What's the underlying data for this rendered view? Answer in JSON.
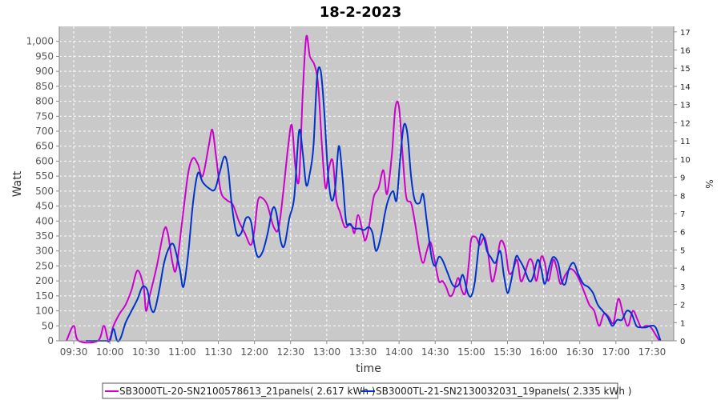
{
  "chart_data": {
    "type": "line",
    "title": "18-2-2023",
    "xlabel": "time",
    "ylabel": "Watt",
    "y2label": "%",
    "ylim": [
      0,
      1050
    ],
    "y2lim": [
      0,
      17.3
    ],
    "xlim": [
      "09:18",
      "17:48"
    ],
    "grid": true,
    "legend_position": "bottom",
    "x_ticks": [
      "09:30",
      "10:00",
      "10:30",
      "11:00",
      "11:30",
      "12:00",
      "12:30",
      "13:00",
      "13:30",
      "14:00",
      "14:30",
      "15:00",
      "15:30",
      "16:00",
      "16:30",
      "17:00",
      "17:30"
    ],
    "y_ticks": [
      "0",
      "50",
      "100",
      "150",
      "200",
      "250",
      "300",
      "350",
      "400",
      "450",
      "500",
      "550",
      "600",
      "650",
      "700",
      "750",
      "800",
      "850",
      "900",
      "950",
      "1,000"
    ],
    "y2_ticks": [
      "0",
      "1",
      "2",
      "3",
      "4",
      "5",
      "6",
      "7",
      "8",
      "9",
      "10",
      "11",
      "12",
      "13",
      "14",
      "15",
      "16",
      "17"
    ],
    "series": [
      {
        "name": "SB3000TL-20-SN2100578613_21panels( 2.617 kWh )",
        "color": "#cc00cc",
        "points": [
          [
            "09:24",
            0
          ],
          [
            "09:30",
            50
          ],
          [
            "09:34",
            0
          ],
          [
            "09:50",
            0
          ],
          [
            "09:55",
            50
          ],
          [
            "09:59",
            0
          ],
          [
            "10:03",
            50
          ],
          [
            "10:08",
            90
          ],
          [
            "10:13",
            120
          ],
          [
            "10:18",
            170
          ],
          [
            "10:23",
            235
          ],
          [
            "10:28",
            180
          ],
          [
            "10:30",
            100
          ],
          [
            "10:33",
            150
          ],
          [
            "10:39",
            250
          ],
          [
            "10:45",
            370
          ],
          [
            "10:48",
            360
          ],
          [
            "10:52",
            260
          ],
          [
            "10:55",
            240
          ],
          [
            "11:00",
            400
          ],
          [
            "11:05",
            560
          ],
          [
            "11:09",
            610
          ],
          [
            "11:13",
            590
          ],
          [
            "11:17",
            550
          ],
          [
            "11:22",
            650
          ],
          [
            "11:25",
            705
          ],
          [
            "11:28",
            620
          ],
          [
            "11:32",
            500
          ],
          [
            "11:37",
            470
          ],
          [
            "11:42",
            455
          ],
          [
            "11:47",
            400
          ],
          [
            "11:52",
            360
          ],
          [
            "11:57",
            320
          ],
          [
            "12:00",
            370
          ],
          [
            "12:03",
            470
          ],
          [
            "12:07",
            475
          ],
          [
            "12:11",
            450
          ],
          [
            "12:16",
            380
          ],
          [
            "12:20",
            375
          ],
          [
            "12:24",
            500
          ],
          [
            "12:28",
            650
          ],
          [
            "12:31",
            720
          ],
          [
            "12:34",
            580
          ],
          [
            "12:37",
            540
          ],
          [
            "12:40",
            820
          ],
          [
            "12:43",
            1015
          ],
          [
            "12:46",
            950
          ],
          [
            "12:50",
            920
          ],
          [
            "12:53",
            850
          ],
          [
            "12:56",
            650
          ],
          [
            "12:59",
            510
          ],
          [
            "13:02",
            580
          ],
          [
            "13:05",
            600
          ],
          [
            "13:08",
            470
          ],
          [
            "13:11",
            430
          ],
          [
            "13:15",
            380
          ],
          [
            "13:20",
            390
          ],
          [
            "13:23",
            360
          ],
          [
            "13:26",
            420
          ],
          [
            "13:30",
            360
          ],
          [
            "13:32",
            335
          ],
          [
            "13:35",
            380
          ],
          [
            "13:39",
            480
          ],
          [
            "13:43",
            510
          ],
          [
            "13:47",
            570
          ],
          [
            "13:50",
            490
          ],
          [
            "13:54",
            620
          ],
          [
            "13:57",
            780
          ],
          [
            "14:00",
            780
          ],
          [
            "14:03",
            620
          ],
          [
            "14:06",
            480
          ],
          [
            "14:10",
            460
          ],
          [
            "14:13",
            400
          ],
          [
            "14:17",
            300
          ],
          [
            "14:20",
            260
          ],
          [
            "14:23",
            300
          ],
          [
            "14:26",
            330
          ],
          [
            "14:29",
            280
          ],
          [
            "14:33",
            200
          ],
          [
            "14:36",
            200
          ],
          [
            "14:39",
            180
          ],
          [
            "14:42",
            150
          ],
          [
            "14:45",
            160
          ],
          [
            "14:49",
            210
          ],
          [
            "14:52",
            170
          ],
          [
            "14:55",
            160
          ],
          [
            "14:58",
            260
          ],
          [
            "15:00",
            340
          ],
          [
            "15:04",
            345
          ],
          [
            "15:07",
            320
          ],
          [
            "15:11",
            345
          ],
          [
            "15:14",
            290
          ],
          [
            "15:17",
            200
          ],
          [
            "15:20",
            230
          ],
          [
            "15:24",
            330
          ],
          [
            "15:28",
            310
          ],
          [
            "15:31",
            230
          ],
          [
            "15:34",
            230
          ],
          [
            "15:38",
            270
          ],
          [
            "15:41",
            200
          ],
          [
            "15:44",
            220
          ],
          [
            "15:48",
            270
          ],
          [
            "15:51",
            260
          ],
          [
            "15:54",
            200
          ],
          [
            "15:58",
            280
          ],
          [
            "16:01",
            260
          ],
          [
            "16:04",
            200
          ],
          [
            "16:08",
            270
          ],
          [
            "16:11",
            240
          ],
          [
            "16:14",
            190
          ],
          [
            "16:18",
            220
          ],
          [
            "16:22",
            240
          ],
          [
            "16:26",
            230
          ],
          [
            "16:30",
            200
          ],
          [
            "16:34",
            160
          ],
          [
            "16:38",
            120
          ],
          [
            "16:42",
            100
          ],
          [
            "16:46",
            50
          ],
          [
            "16:50",
            90
          ],
          [
            "16:54",
            80
          ],
          [
            "16:58",
            60
          ],
          [
            "17:02",
            140
          ],
          [
            "17:06",
            90
          ],
          [
            "17:10",
            50
          ],
          [
            "17:14",
            100
          ],
          [
            "17:18",
            70
          ],
          [
            "17:21",
            45
          ],
          [
            "17:25",
            50
          ],
          [
            "17:29",
            45
          ],
          [
            "17:33",
            20
          ],
          [
            "17:36",
            0
          ]
        ]
      },
      {
        "name": "SB3000TL-21-SN2130032031_19panels( 2.335 kWh )",
        "color": "#0033cc",
        "points": [
          [
            "09:40",
            0
          ],
          [
            "09:52",
            0
          ],
          [
            "09:57",
            0
          ],
          [
            "10:00",
            0
          ],
          [
            "10:03",
            40
          ],
          [
            "10:06",
            0
          ],
          [
            "10:09",
            10
          ],
          [
            "10:13",
            60
          ],
          [
            "10:18",
            100
          ],
          [
            "10:23",
            140
          ],
          [
            "10:27",
            180
          ],
          [
            "10:31",
            170
          ],
          [
            "10:34",
            110
          ],
          [
            "10:37",
            100
          ],
          [
            "10:41",
            170
          ],
          [
            "10:45",
            260
          ],
          [
            "10:49",
            310
          ],
          [
            "10:53",
            320
          ],
          [
            "10:58",
            240
          ],
          [
            "11:01",
            180
          ],
          [
            "11:05",
            290
          ],
          [
            "11:09",
            460
          ],
          [
            "11:13",
            560
          ],
          [
            "11:17",
            530
          ],
          [
            "11:22",
            510
          ],
          [
            "11:27",
            505
          ],
          [
            "11:31",
            560
          ],
          [
            "11:35",
            615
          ],
          [
            "11:38",
            580
          ],
          [
            "11:41",
            460
          ],
          [
            "11:45",
            360
          ],
          [
            "11:49",
            360
          ],
          [
            "11:53",
            410
          ],
          [
            "11:57",
            400
          ],
          [
            "12:00",
            320
          ],
          [
            "12:03",
            280
          ],
          [
            "12:07",
            300
          ],
          [
            "12:11",
            360
          ],
          [
            "12:15",
            440
          ],
          [
            "12:18",
            430
          ],
          [
            "12:22",
            330
          ],
          [
            "12:25",
            320
          ],
          [
            "12:29",
            410
          ],
          [
            "12:33",
            480
          ],
          [
            "12:37",
            700
          ],
          [
            "12:40",
            630
          ],
          [
            "12:43",
            520
          ],
          [
            "12:46",
            560
          ],
          [
            "12:49",
            650
          ],
          [
            "12:52",
            880
          ],
          [
            "12:55",
            900
          ],
          [
            "12:58",
            760
          ],
          [
            "13:01",
            560
          ],
          [
            "13:04",
            470
          ],
          [
            "13:07",
            510
          ],
          [
            "13:10",
            650
          ],
          [
            "13:13",
            550
          ],
          [
            "13:16",
            400
          ],
          [
            "13:19",
            390
          ],
          [
            "13:23",
            375
          ],
          [
            "13:27",
            375
          ],
          [
            "13:31",
            370
          ],
          [
            "13:35",
            380
          ],
          [
            "13:38",
            360
          ],
          [
            "13:41",
            300
          ],
          [
            "13:45",
            350
          ],
          [
            "13:48",
            420
          ],
          [
            "13:51",
            470
          ],
          [
            "13:55",
            500
          ],
          [
            "13:58",
            470
          ],
          [
            "14:01",
            610
          ],
          [
            "14:04",
            720
          ],
          [
            "14:07",
            690
          ],
          [
            "14:10",
            550
          ],
          [
            "14:13",
            470
          ],
          [
            "14:17",
            460
          ],
          [
            "14:20",
            490
          ],
          [
            "14:23",
            400
          ],
          [
            "14:27",
            280
          ],
          [
            "14:30",
            250
          ],
          [
            "14:33",
            280
          ],
          [
            "14:36",
            270
          ],
          [
            "14:40",
            230
          ],
          [
            "14:44",
            190
          ],
          [
            "14:47",
            180
          ],
          [
            "14:50",
            190
          ],
          [
            "14:53",
            220
          ],
          [
            "14:57",
            160
          ],
          [
            "15:00",
            150
          ],
          [
            "15:03",
            200
          ],
          [
            "15:07",
            340
          ],
          [
            "15:10",
            350
          ],
          [
            "15:13",
            300
          ],
          [
            "15:16",
            280
          ],
          [
            "15:20",
            260
          ],
          [
            "15:24",
            300
          ],
          [
            "15:27",
            220
          ],
          [
            "15:30",
            160
          ],
          [
            "15:33",
            200
          ],
          [
            "15:37",
            280
          ],
          [
            "15:40",
            270
          ],
          [
            "15:44",
            240
          ],
          [
            "15:48",
            200
          ],
          [
            "15:51",
            210
          ],
          [
            "15:55",
            270
          ],
          [
            "15:58",
            240
          ],
          [
            "16:01",
            190
          ],
          [
            "16:05",
            250
          ],
          [
            "16:08",
            280
          ],
          [
            "16:12",
            260
          ],
          [
            "16:15",
            200
          ],
          [
            "16:18",
            190
          ],
          [
            "16:21",
            240
          ],
          [
            "16:25",
            260
          ],
          [
            "16:29",
            220
          ],
          [
            "16:33",
            190
          ],
          [
            "16:37",
            180
          ],
          [
            "16:41",
            160
          ],
          [
            "16:45",
            120
          ],
          [
            "16:49",
            100
          ],
          [
            "16:53",
            80
          ],
          [
            "16:57",
            50
          ],
          [
            "17:01",
            70
          ],
          [
            "17:05",
            70
          ],
          [
            "17:09",
            100
          ],
          [
            "17:13",
            90
          ],
          [
            "17:17",
            50
          ],
          [
            "17:21",
            45
          ],
          [
            "17:25",
            45
          ],
          [
            "17:29",
            50
          ],
          [
            "17:33",
            45
          ],
          [
            "17:37",
            0
          ]
        ]
      }
    ]
  }
}
